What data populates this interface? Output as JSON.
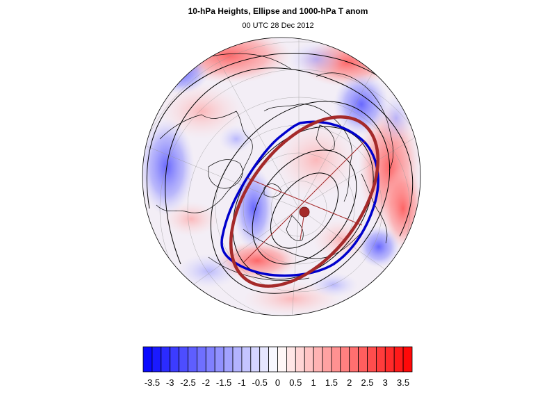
{
  "title": "10-hPa Heights, Ellipse and 1000-hPa T anom",
  "subtitle": "00 UTC 28 Dec 2012",
  "colors": {
    "cold": "#0000ff",
    "warm": "#ff0000",
    "vortex_edge": "#0000cc",
    "ellipse": "#a52a2a",
    "height_contour": "#000000",
    "coastline": "#000000",
    "gridline": "#999999"
  },
  "colorbar": {
    "min": -3.75,
    "max": 3.75,
    "step": 0.25,
    "tick_labels": [
      "-3.5",
      "-3",
      "-2.5",
      "-2",
      "-1.5",
      "-1",
      "-0.5",
      "0",
      "0.5",
      "1",
      "1.5",
      "2",
      "2.5",
      "3",
      "3.5"
    ]
  }
}
